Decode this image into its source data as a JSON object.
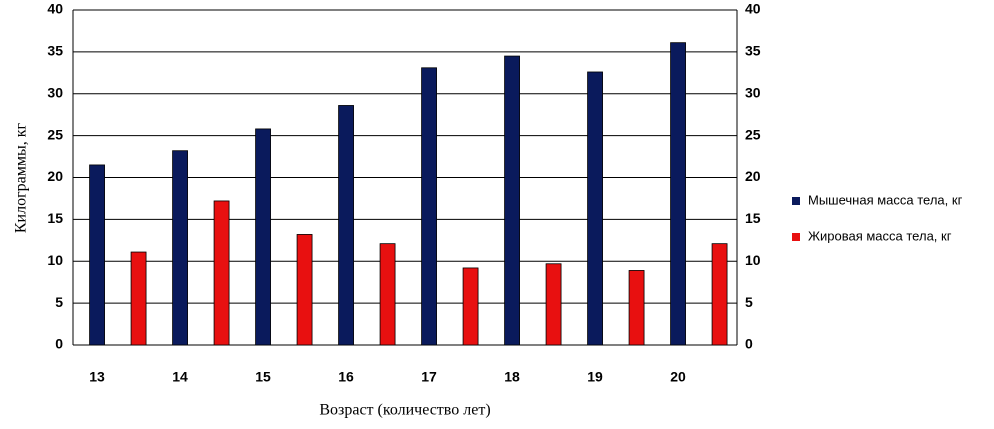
{
  "chart_data": {
    "type": "bar",
    "x_label": "Возраст (количество лет)",
    "y_label": "Килограммы, кг",
    "categories": [
      "13",
      "14",
      "15",
      "16",
      "17",
      "18",
      "19",
      "20"
    ],
    "series": [
      {
        "name": "Мышечная масса тела, кг",
        "color": "#0a1a5c",
        "values": [
          21.5,
          23.2,
          25.8,
          28.6,
          33.1,
          34.5,
          32.6,
          36.1
        ]
      },
      {
        "name": "Жировая масса тела, кг",
        "color": "#e81010",
        "values": [
          11.1,
          17.2,
          13.2,
          12.1,
          9.2,
          9.7,
          8.9,
          12.1
        ]
      }
    ],
    "ylim": [
      0,
      40
    ],
    "yticks": [
      0,
      5,
      10,
      15,
      20,
      25,
      30,
      35,
      40
    ],
    "grid": true
  }
}
